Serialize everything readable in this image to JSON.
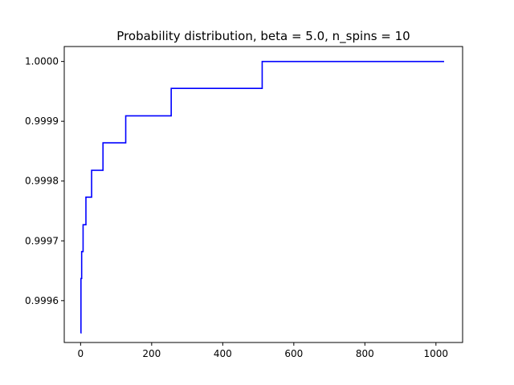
{
  "chart_data": {
    "type": "line",
    "title": "Probability distribution, beta = 5.0, n_spins = 10",
    "xlabel": "",
    "ylabel": "",
    "xlim": [
      -46,
      1075
    ],
    "ylim": [
      0.99953,
      1.000025
    ],
    "x_ticks": [
      0,
      200,
      400,
      600,
      800,
      1000
    ],
    "y_ticks": [
      0.9996,
      0.9997,
      0.9998,
      0.9999,
      1.0
    ],
    "y_tick_labels": [
      "0.9996",
      "0.9997",
      "0.9998",
      "0.9999",
      "1.0000"
    ],
    "grid": false,
    "legend": "none",
    "series": [
      {
        "color": "#0000ff",
        "x": [
          0,
          1,
          1,
          3,
          3,
          7,
          7,
          15,
          15,
          31,
          31,
          63,
          63,
          127,
          127,
          255,
          255,
          511,
          511,
          1023
        ],
        "y": [
          0.999546,
          0.999546,
          0.999637,
          0.999637,
          0.999682,
          0.999682,
          0.999727,
          0.999727,
          0.999773,
          0.999773,
          0.999818,
          0.999818,
          0.999864,
          0.999864,
          0.999909,
          0.999909,
          0.999955,
          0.999955,
          1.0,
          1.0
        ]
      }
    ]
  }
}
